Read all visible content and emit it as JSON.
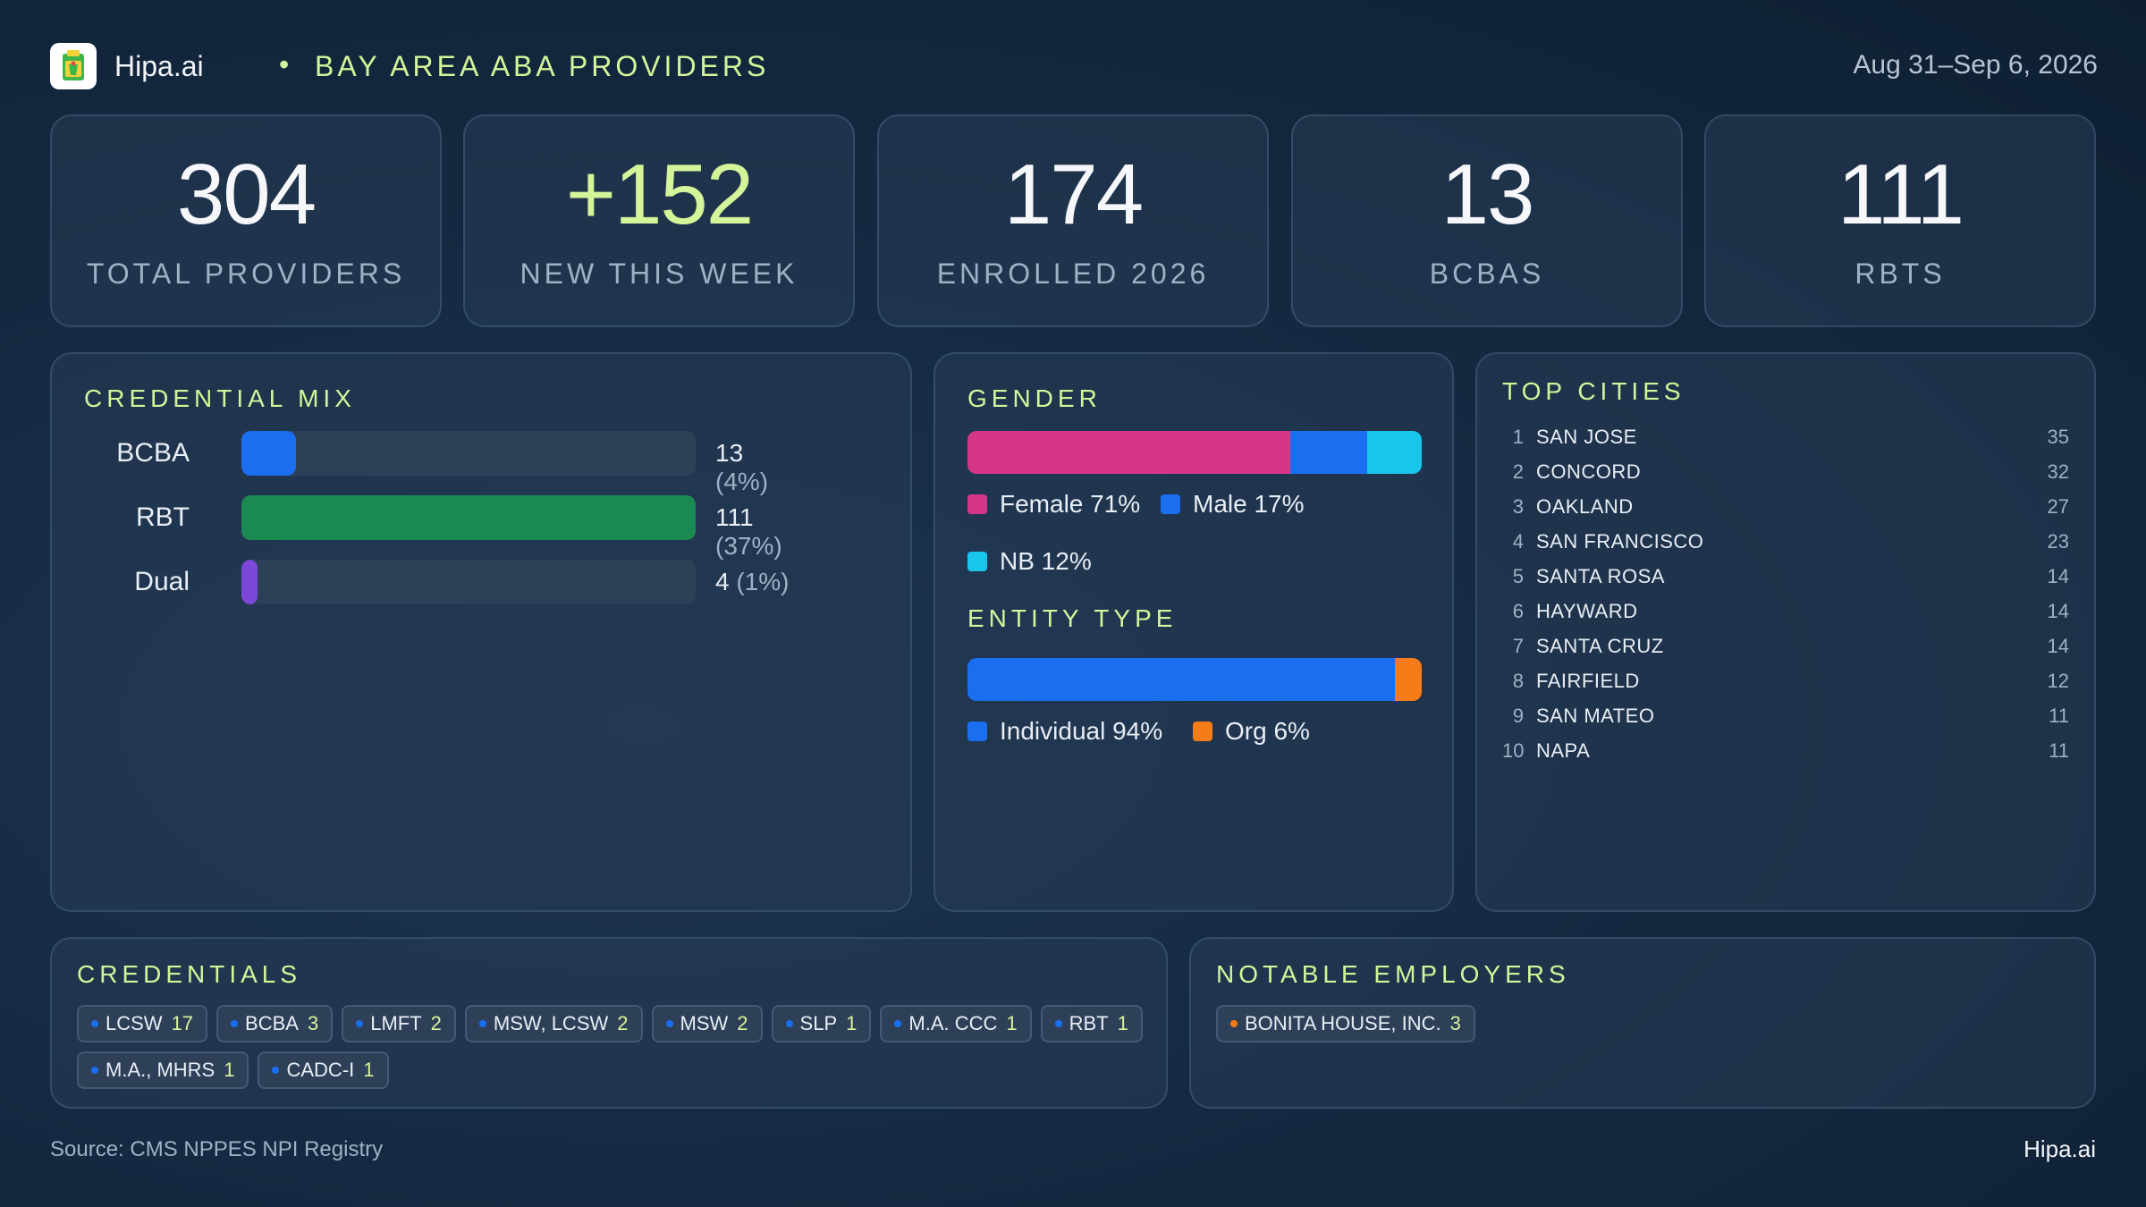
{
  "header": {
    "brand": "Hipa.ai",
    "separator": "•",
    "title": "BAY AREA ABA PROVIDERS",
    "date_range": "Aug 31–Sep 6, 2026",
    "logo_icon": "clipboard-drink-icon"
  },
  "stats": [
    {
      "value": "304",
      "label": "TOTAL PROVIDERS"
    },
    {
      "value": "+152",
      "label": "NEW THIS WEEK"
    },
    {
      "value": "174",
      "label": "ENROLLED 2026"
    },
    {
      "value": "13",
      "label": "BCBAS"
    },
    {
      "value": "111",
      "label": "RBTS"
    }
  ],
  "credential_mix": {
    "title": "CREDENTIAL MIX",
    "rows": [
      {
        "label": "BCBA",
        "count": "13",
        "pct": "(4%)",
        "share": 0.12,
        "color": "#1a6ef0"
      },
      {
        "label": "RBT",
        "count": "111",
        "pct": "(37%)",
        "share": 1.0,
        "color": "#1b8a52"
      },
      {
        "label": "Dual",
        "count": "4",
        "pct": "(1%)",
        "share": 0.036,
        "color": "#7b48d8"
      }
    ]
  },
  "gender": {
    "title": "GENDER",
    "segments": [
      {
        "label": "Female 71%",
        "share": 71,
        "color": "#d6368a"
      },
      {
        "label": "Male 17%",
        "share": 17,
        "color": "#1a6ef0"
      },
      {
        "label": "NB 12%",
        "share": 12,
        "color": "#19c6ea"
      }
    ]
  },
  "entity_type": {
    "title": "ENTITY TYPE",
    "segments": [
      {
        "label": "Individual 94%",
        "share": 94,
        "color": "#1a6ef0"
      },
      {
        "label": "Org 6%",
        "share": 6,
        "color": "#f57c18"
      }
    ]
  },
  "top_cities": {
    "title": "TOP CITIES",
    "rows": [
      {
        "rank": "1",
        "name": "SAN JOSE",
        "count": "35"
      },
      {
        "rank": "2",
        "name": "CONCORD",
        "count": "32"
      },
      {
        "rank": "3",
        "name": "OAKLAND",
        "count": "27"
      },
      {
        "rank": "4",
        "name": "SAN FRANCISCO",
        "count": "23"
      },
      {
        "rank": "5",
        "name": "SANTA ROSA",
        "count": "14"
      },
      {
        "rank": "6",
        "name": "HAYWARD",
        "count": "14"
      },
      {
        "rank": "7",
        "name": "SANTA CRUZ",
        "count": "14"
      },
      {
        "rank": "8",
        "name": "FAIRFIELD",
        "count": "12"
      },
      {
        "rank": "9",
        "name": "SAN MATEO",
        "count": "11"
      },
      {
        "rank": "10",
        "name": "NAPA",
        "count": "11"
      }
    ]
  },
  "credentials": {
    "title": "CREDENTIALS",
    "chips": [
      {
        "label": "LCSW",
        "count": "17"
      },
      {
        "label": "BCBA",
        "count": "3"
      },
      {
        "label": "LMFT",
        "count": "2"
      },
      {
        "label": "MSW, LCSW",
        "count": "2"
      },
      {
        "label": "MSW",
        "count": "2"
      },
      {
        "label": "SLP",
        "count": "1"
      },
      {
        "label": "M.A. CCC",
        "count": "1"
      },
      {
        "label": "RBT",
        "count": "1"
      },
      {
        "label": "M.A., MHRS",
        "count": "1"
      },
      {
        "label": "CADC-I",
        "count": "1"
      }
    ],
    "dot_color": "#1a6ef0"
  },
  "employers": {
    "title": "NOTABLE EMPLOYERS",
    "chips": [
      {
        "label": "BONITA HOUSE, INC.",
        "count": "3"
      }
    ],
    "dot_color": "#f57c18"
  },
  "footer": {
    "source": "Source: CMS NPPES NPI Registry",
    "brand": "Hipa.ai"
  }
}
